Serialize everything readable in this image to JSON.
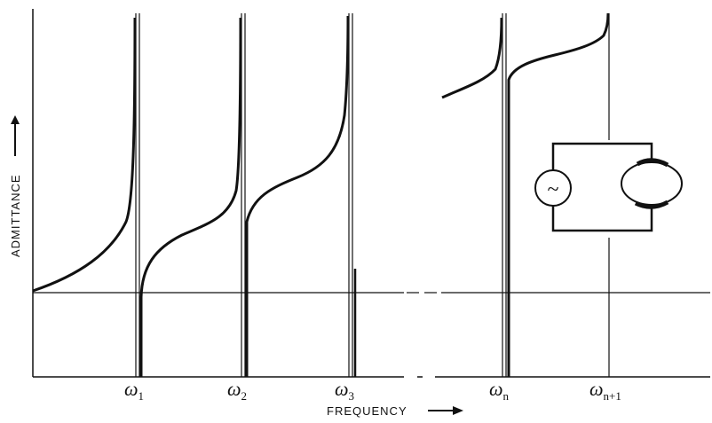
{
  "axes": {
    "x_label": "FREQUENCY",
    "y_label": "ADMITTANCE"
  },
  "resonances": [
    {
      "symbol": "ω",
      "subscript": "1"
    },
    {
      "symbol": "ω",
      "subscript": "2"
    },
    {
      "symbol": "ω",
      "subscript": "3"
    },
    {
      "symbol": "ω",
      "subscript": "n"
    },
    {
      "symbol": "ω",
      "subscript": "n+1"
    }
  ],
  "inset": {
    "source_symbol": "~"
  },
  "colors": {
    "ink": "#111111",
    "background": "#ffffff"
  }
}
